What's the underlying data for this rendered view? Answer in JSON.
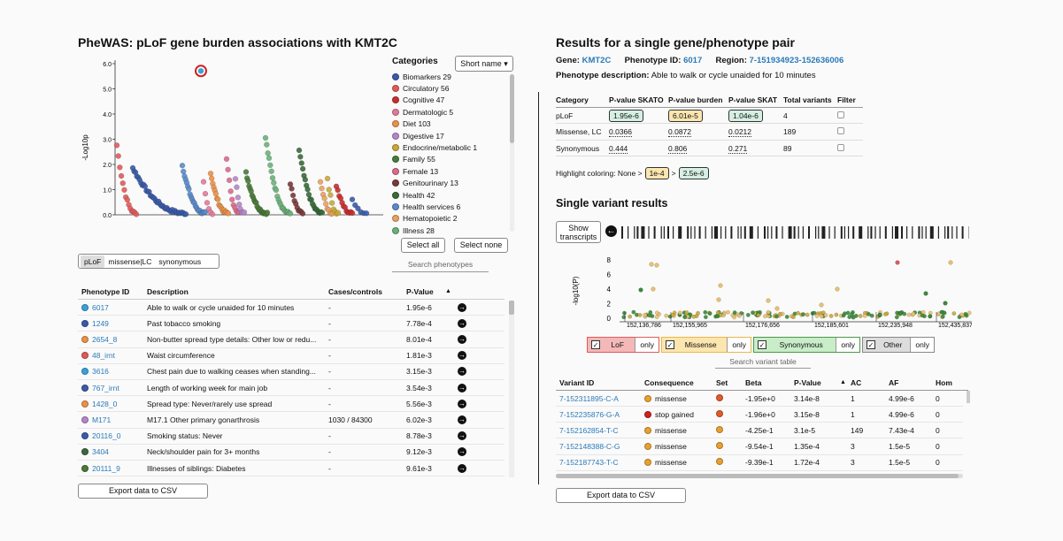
{
  "left": {
    "title": "PheWAS: pLoF gene burden associations with KMT2C",
    "ylabel": "-Log10p",
    "yticks": [
      "6.0",
      "5.0",
      "4.0",
      "3.0",
      "2.0",
      "1.0",
      "0.0"
    ],
    "categories_title": "Categories",
    "dropdown_label": "Short name",
    "categories": [
      {
        "label": "Biomarkers 29",
        "color": "#3b5ba8"
      },
      {
        "label": "Circulatory 56",
        "color": "#e05a5a"
      },
      {
        "label": "Cognitive 47",
        "color": "#c72f2f"
      },
      {
        "label": "Dermatologic 5",
        "color": "#e07a9a"
      },
      {
        "label": "Diet 103",
        "color": "#e8914a"
      },
      {
        "label": "Digestive 17",
        "color": "#b585c9"
      },
      {
        "label": "Endocrine/metabolic 1",
        "color": "#c9a73a"
      },
      {
        "label": "Family 55",
        "color": "#4a7a3a"
      },
      {
        "label": "Female 13",
        "color": "#d96a8a"
      },
      {
        "label": "Genitourinary 13",
        "color": "#7a3a3a"
      },
      {
        "label": "Health 42",
        "color": "#3a6a3a"
      },
      {
        "label": "Health services 6",
        "color": "#5a8ac9"
      },
      {
        "label": "Hematopoietic 2",
        "color": "#e8a060"
      },
      {
        "label": "Illness 28",
        "color": "#6ab07a"
      }
    ],
    "select_all": "Select all",
    "select_none": "Select none",
    "search_placeholder": "Search phenotypes",
    "toggles": [
      "pLoF",
      "missense|LC",
      "synonymous"
    ],
    "table_headers": {
      "id": "Phenotype ID",
      "desc": "Description",
      "cases": "Cases/controls",
      "pval": "P-Value",
      "sort": "▲"
    },
    "rows": [
      {
        "id": "6017",
        "desc": "Able to walk or cycle unaided for 10 minutes",
        "cases": "-",
        "p": "1.95e-6",
        "color": "#3aa0d8"
      },
      {
        "id": "1249",
        "desc": "Past tobacco smoking",
        "cases": "-",
        "p": "7.78e-4",
        "color": "#3b5ba8"
      },
      {
        "id": "2654_8",
        "desc": "Non-butter spread type details: Other low or redu...",
        "cases": "-",
        "p": "8.01e-4",
        "color": "#e8914a"
      },
      {
        "id": "48_irnt",
        "desc": "Waist circumference",
        "cases": "-",
        "p": "1.81e-3",
        "color": "#e05a5a"
      },
      {
        "id": "3616",
        "desc": "Chest pain due to walking ceases when standing...",
        "cases": "-",
        "p": "3.15e-3",
        "color": "#3aa0d8"
      },
      {
        "id": "767_irnt",
        "desc": "Length of working week for main job",
        "cases": "-",
        "p": "3.54e-3",
        "color": "#3b5ba8"
      },
      {
        "id": "1428_0",
        "desc": "Spread type: Never/rarely use spread",
        "cases": "-",
        "p": "5.56e-3",
        "color": "#e8914a"
      },
      {
        "id": "M171",
        "desc": "M17.1 Other primary gonarthrosis",
        "cases": "1030 / 84300",
        "p": "6.02e-3",
        "color": "#b585c9"
      },
      {
        "id": "20116_0",
        "desc": "Smoking status: Never",
        "cases": "-",
        "p": "8.78e-3",
        "color": "#3b5ba8"
      },
      {
        "id": "3404",
        "desc": "Neck/shoulder pain for 3+ months",
        "cases": "-",
        "p": "9.12e-3",
        "color": "#3a6a3a"
      },
      {
        "id": "20111_9",
        "desc": "Illnesses of siblings: Diabetes",
        "cases": "-",
        "p": "9.61e-3",
        "color": "#4a7a3a"
      }
    ],
    "export": "Export data to CSV"
  },
  "right": {
    "title": "Results for a single gene/phenotype pair",
    "gene_label": "Gene:",
    "gene": "KMT2C",
    "phen_label": "Phenotype ID:",
    "phen": "6017",
    "region_label": "Region:",
    "region": "7-151934923-152636006",
    "desc_label": "Phenotype description:",
    "desc": "Able to walk or cycle unaided for 10 minutes",
    "sum_headers": [
      "Category",
      "P-value SKATO",
      "P-value burden",
      "P-value SKAT",
      "Total variants",
      "Filter"
    ],
    "sum_rows": [
      {
        "cat": "pLoF",
        "skato": "1.95e-6",
        "burden": "6.01e-5",
        "skat": "1.04e-6",
        "total": "4"
      },
      {
        "cat": "Missense, LC",
        "skato": "0.0366",
        "burden": "0.0872",
        "skat": "0.0212",
        "total": "189"
      },
      {
        "cat": "Synonymous",
        "skato": "0.444",
        "burden": "0.806",
        "skat": "0.271",
        "total": "89"
      }
    ],
    "highlight_label": "Highlight coloring: None >",
    "hl1": "1e-4",
    "hl_sep": ">",
    "hl2": "2.5e-6",
    "variant_title": "Single variant results",
    "show_transcripts": "Show transcripts",
    "vplot_ylabel": "-log10(P)",
    "vplot_yticks": [
      "8",
      "6",
      "4",
      "2",
      "0"
    ],
    "vplot_xticks": [
      "152,136,786",
      "152,155,965",
      "152,176,656",
      "152,185,601",
      "152,235,948",
      "152,435,837"
    ],
    "filters": [
      {
        "label": "LoF",
        "only": "only",
        "color": "#f4b8b8",
        "border": "#e05a5a"
      },
      {
        "label": "Missense",
        "only": "only",
        "color": "#fbe6b0",
        "border": "#e8b84a"
      },
      {
        "label": "Synonymous",
        "only": "only",
        "color": "#c9ecc9",
        "border": "#4a9a4a"
      },
      {
        "label": "Other",
        "only": "only",
        "color": "#dddddd",
        "border": "#888888"
      }
    ],
    "search_variant": "Search variant table",
    "var_headers": {
      "id": "Variant ID",
      "cons": "Consequence",
      "set": "Set",
      "beta": "Beta",
      "pval": "P-Value",
      "sort": "▲",
      "ac": "AC",
      "af": "AF",
      "hom": "Hom"
    },
    "variants": [
      {
        "id": "7-152311895-C-A",
        "cons": "missense",
        "cons_color": "#e8a030",
        "set_color": "#e05a2a",
        "beta": "-1.95e+0",
        "p": "3.14e-8",
        "ac": "1",
        "af": "4.99e-6",
        "hom": "0"
      },
      {
        "id": "7-152235876-G-A",
        "cons": "stop gained",
        "cons_color": "#d02020",
        "set_color": "#e05a2a",
        "beta": "-1.96e+0",
        "p": "3.15e-8",
        "ac": "1",
        "af": "4.99e-6",
        "hom": "0"
      },
      {
        "id": "7-152162854-T-C",
        "cons": "missense",
        "cons_color": "#e8a030",
        "set_color": "#e8a030",
        "beta": "-4.25e-1",
        "p": "3.1e-5",
        "ac": "149",
        "af": "7.43e-4",
        "hom": "0"
      },
      {
        "id": "7-152148388-C-G",
        "cons": "missense",
        "cons_color": "#e8a030",
        "set_color": "#e8a030",
        "beta": "-9.54e-1",
        "p": "1.35e-4",
        "ac": "3",
        "af": "1.5e-5",
        "hom": "0"
      },
      {
        "id": "7-152187743-T-C",
        "cons": "missense",
        "cons_color": "#e8a030",
        "set_color": "#e8a030",
        "beta": "-9.39e-1",
        "p": "1.72e-4",
        "ac": "3",
        "af": "1.5e-5",
        "hom": "0"
      }
    ],
    "export": "Export data to CSV"
  }
}
